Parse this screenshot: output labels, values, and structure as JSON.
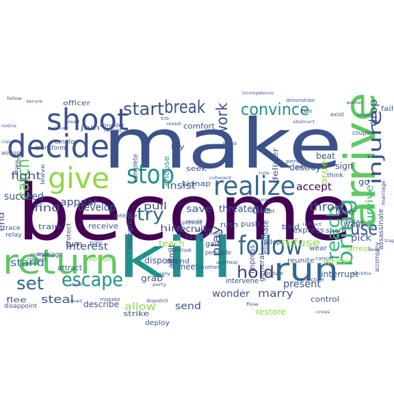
{
  "cloud": {
    "words": [
      {
        "text": "become",
        "color": "#440154"
      },
      {
        "text": "make",
        "color": "#3b528b"
      },
      {
        "text": "kill",
        "color": "#21918c"
      },
      {
        "text": "arrive",
        "color": "#5ec962"
      },
      {
        "text": "return",
        "color": "#5ec962"
      },
      {
        "text": "shoot",
        "color": "#3b528b"
      },
      {
        "text": "decide",
        "color": "#3b528b"
      },
      {
        "text": "give",
        "color": "#90d743"
      },
      {
        "text": "stop",
        "color": "#21918c"
      },
      {
        "text": "realize",
        "color": "#31688e"
      },
      {
        "text": "follow",
        "color": "#31688e"
      },
      {
        "text": "run",
        "color": "#31688e"
      },
      {
        "text": "start",
        "color": "#3b528b"
      },
      {
        "text": "break",
        "color": "#3b528b"
      },
      {
        "text": "work",
        "color": "#3b528b"
      },
      {
        "text": "convince",
        "color": "#21918c"
      },
      {
        "text": "catch",
        "color": "#5ec962"
      },
      {
        "text": "escape",
        "color": "#21918c"
      },
      {
        "text": "set",
        "color": "#31688e"
      },
      {
        "text": "hold",
        "color": "#443983"
      },
      {
        "text": "use",
        "color": "#3b528b"
      },
      {
        "text": "bring",
        "color": "#35b779"
      },
      {
        "text": "reach",
        "color": "#35b779"
      },
      {
        "text": "injure",
        "color": "#3b528b"
      },
      {
        "text": "drop",
        "color": "#3b528b"
      },
      {
        "text": "survive",
        "color": "#35b779"
      },
      {
        "text": "try",
        "color": "#31688e"
      },
      {
        "text": "fight",
        "color": "#3b528b"
      },
      {
        "text": "succeed",
        "color": "#3b528b"
      },
      {
        "text": "appear",
        "color": "#3b528b"
      },
      {
        "text": "find",
        "color": "#3b528b"
      },
      {
        "text": "develop",
        "color": "#3b528b"
      },
      {
        "text": "accept",
        "color": "#440154"
      },
      {
        "text": "throw",
        "color": "#3b528b"
      },
      {
        "text": "play",
        "color": "#3b528b"
      },
      {
        "text": "interest",
        "color": "#3b528b"
      },
      {
        "text": "steal",
        "color": "#3b528b"
      },
      {
        "text": "stand",
        "color": "#31688e"
      },
      {
        "text": "insist",
        "color": "#3b528b"
      },
      {
        "text": "save",
        "color": "#3b528b"
      },
      {
        "text": "pull",
        "color": "#3b528b"
      },
      {
        "text": "hire",
        "color": "#3b528b"
      },
      {
        "text": "marry",
        "color": "#3b528b"
      },
      {
        "text": "refuse",
        "color": "#90d743"
      },
      {
        "text": "present",
        "color": "#3b528b"
      },
      {
        "text": "wonder",
        "color": "#3b528b"
      },
      {
        "text": "allow",
        "color": "#90d743"
      },
      {
        "text": "send",
        "color": "#3b528b"
      },
      {
        "text": "die",
        "color": "#3b528b"
      },
      {
        "text": "recruit",
        "color": "#3b528b"
      },
      {
        "text": "threaten",
        "color": "#3b528b"
      },
      {
        "text": "describe",
        "color": "#3b528b"
      },
      {
        "text": "write",
        "color": "#90d743"
      },
      {
        "text": "lose",
        "color": "#3b528b"
      },
      {
        "text": "want",
        "color": "#3b528b"
      },
      {
        "text": "pick",
        "color": "#3b528b"
      },
      {
        "text": "destroy",
        "color": "#3b528b"
      },
      {
        "text": "interrupt",
        "color": "#3b528b"
      },
      {
        "text": "flee",
        "color": "#3b528b"
      },
      {
        "text": "teach",
        "color": "#90d743"
      },
      {
        "text": "recognize",
        "color": "#3b528b"
      },
      {
        "text": "dispose",
        "color": "#3b528b"
      },
      {
        "text": "grab",
        "color": "#3b528b"
      },
      {
        "text": "kidnap",
        "color": "#3b528b"
      },
      {
        "text": "receive",
        "color": "#3b528b"
      },
      {
        "text": "choose",
        "color": "#21918c"
      },
      {
        "text": "meet",
        "color": "#3b528b"
      },
      {
        "text": "seek",
        "color": "#3b528b"
      },
      {
        "text": "arrest",
        "color": "#90d743"
      },
      {
        "text": "order",
        "color": "#90d743"
      },
      {
        "text": "go",
        "color": "#3b528b"
      },
      {
        "text": "officer",
        "color": "#3b528b"
      },
      {
        "text": "comfort",
        "color": "#3b528b"
      },
      {
        "text": "deliver",
        "color": "#3b528b"
      },
      {
        "text": "end",
        "color": "#3b528b"
      },
      {
        "text": "push",
        "color": "#3b528b"
      },
      {
        "text": "rush",
        "color": "#3b528b"
      },
      {
        "text": "adopt",
        "color": "#3b528b"
      },
      {
        "text": "beat",
        "color": "#3b528b"
      },
      {
        "text": "sign",
        "color": "#3b528b"
      },
      {
        "text": "lay",
        "color": "#3b528b"
      },
      {
        "text": "turn",
        "color": "#3b528b"
      },
      {
        "text": "attract",
        "color": "#3b528b"
      },
      {
        "text": "train",
        "color": "#3b528b"
      },
      {
        "text": "express",
        "color": "#3b528b"
      },
      {
        "text": "share",
        "color": "#3b528b"
      },
      {
        "text": "bind",
        "color": "#3b528b"
      },
      {
        "text": "general",
        "color": "#3b528b"
      },
      {
        "text": "impress",
        "color": "#3b528b"
      },
      {
        "text": "eliminate",
        "color": "#3b528b"
      },
      {
        "text": "gain",
        "color": "#3b528b"
      },
      {
        "text": "intervene",
        "color": "#3b528b"
      },
      {
        "text": "strike",
        "color": "#3b528b"
      },
      {
        "text": "deploy",
        "color": "#3b528b"
      },
      {
        "text": "restore",
        "color": "#90d743"
      },
      {
        "text": "control",
        "color": "#3b528b"
      },
      {
        "text": "wear",
        "color": "#3b528b"
      },
      {
        "text": "reunite",
        "color": "#3b528b"
      },
      {
        "text": "regain",
        "color": "#90d743"
      },
      {
        "text": "admit",
        "color": "#3b528b"
      },
      {
        "text": "brag",
        "color": "#3b528b"
      },
      {
        "text": "spend",
        "color": "#3b528b"
      },
      {
        "text": "persuade",
        "color": "#3b528b"
      },
      {
        "text": "manage",
        "color": "#3b528b"
      },
      {
        "text": "join",
        "color": "#3b528b"
      },
      {
        "text": "employ",
        "color": "#3b528b"
      },
      {
        "text": "transform",
        "color": "#3b528b"
      },
      {
        "text": "assign",
        "color": "#3b528b"
      },
      {
        "text": "resent",
        "color": "#3b528b"
      },
      {
        "text": "consider",
        "color": "#3b528b"
      },
      {
        "text": "complete",
        "color": "#3b528b"
      },
      {
        "text": "pay",
        "color": "#3b528b"
      },
      {
        "text": "protect",
        "color": "#3b528b"
      },
      {
        "text": "assassinate",
        "color": "#3b528b"
      },
      {
        "text": "accompany",
        "color": "#3b528b"
      },
      {
        "text": "couple",
        "color": "#3b528b"
      },
      {
        "text": "think",
        "color": "#3b528b"
      },
      {
        "text": "exist",
        "color": "#3b528b"
      },
      {
        "text": "fail",
        "color": "#3b528b"
      },
      {
        "text": "disappoint",
        "color": "#3b528b"
      },
      {
        "text": "relay",
        "color": "#3b528b"
      },
      {
        "text": "trace",
        "color": "#3b528b"
      },
      {
        "text": "provide",
        "color": "#3b528b"
      },
      {
        "text": "suffer",
        "color": "#3b528b"
      },
      {
        "text": "continue",
        "color": "#3b528b"
      },
      {
        "text": "leave",
        "color": "#3b528b"
      },
      {
        "text": "marriage",
        "color": "#3b528b"
      },
      {
        "text": "secure",
        "color": "#3b528b"
      },
      {
        "text": "follow",
        "color": "#3b528b"
      },
      {
        "text": "demonstrate",
        "color": "#3b528b"
      },
      {
        "text": "incompetence",
        "color": "#3b528b"
      },
      {
        "text": "infiltrate",
        "color": "#3b528b"
      },
      {
        "text": "recall",
        "color": "#3b528b"
      },
      {
        "text": "passive",
        "color": "#3b528b"
      },
      {
        "text": "afford",
        "color": "#3b528b"
      },
      {
        "text": "persist",
        "color": "#3b528b"
      },
      {
        "text": "commissioner",
        "color": "#3b528b"
      },
      {
        "text": "betray",
        "color": "#3b528b"
      },
      {
        "text": "cancel",
        "color": "#3b528b"
      },
      {
        "text": "conjecture",
        "color": "#3b528b"
      },
      {
        "text": "deduce",
        "color": "#3b528b"
      },
      {
        "text": "brother",
        "color": "#3b528b"
      },
      {
        "text": "dispatch",
        "color": "#3b528b"
      },
      {
        "text": "overhear",
        "color": "#3b528b"
      },
      {
        "text": "mistake",
        "color": "#3b528b"
      },
      {
        "text": "embrace",
        "color": "#3b528b"
      },
      {
        "text": "connect",
        "color": "#3b528b"
      },
      {
        "text": "puncture",
        "color": "#3b528b"
      },
      {
        "text": "copulate",
        "color": "#3b528b"
      },
      {
        "text": "notice",
        "color": "#3b528b"
      },
      {
        "text": "scream",
        "color": "#3b528b"
      },
      {
        "text": "worker",
        "color": "#3b528b"
      },
      {
        "text": "trap",
        "color": "#3b528b"
      },
      {
        "text": "backfire",
        "color": "#3b528b"
      },
      {
        "text": "deny",
        "color": "#3b528b"
      },
      {
        "text": "cross",
        "color": "#3b528b"
      },
      {
        "text": "dead",
        "color": "#3b528b"
      },
      {
        "text": "read",
        "color": "#3b528b"
      },
      {
        "text": "tell",
        "color": "#3b528b"
      },
      {
        "text": "co",
        "color": "#3b528b"
      },
      {
        "text": "resist",
        "color": "#3b528b"
      },
      {
        "text": "build",
        "color": "#3b528b"
      },
      {
        "text": "obstruct",
        "color": "#3b528b"
      },
      {
        "text": "coherent",
        "color": "#3b528b"
      },
      {
        "text": "rule",
        "color": "#3b528b"
      },
      {
        "text": "reflect",
        "color": "#3b528b"
      },
      {
        "text": "figure",
        "color": "#3b528b"
      },
      {
        "text": "flow",
        "color": "#3b528b"
      },
      {
        "text": "rely",
        "color": "#3b528b"
      },
      {
        "text": "fulfill",
        "color": "#3b528b"
      },
      {
        "text": "prove",
        "color": "#3b528b"
      },
      {
        "text": "plead",
        "color": "#3b528b"
      },
      {
        "text": "party",
        "color": "#3b528b"
      }
    ]
  }
}
